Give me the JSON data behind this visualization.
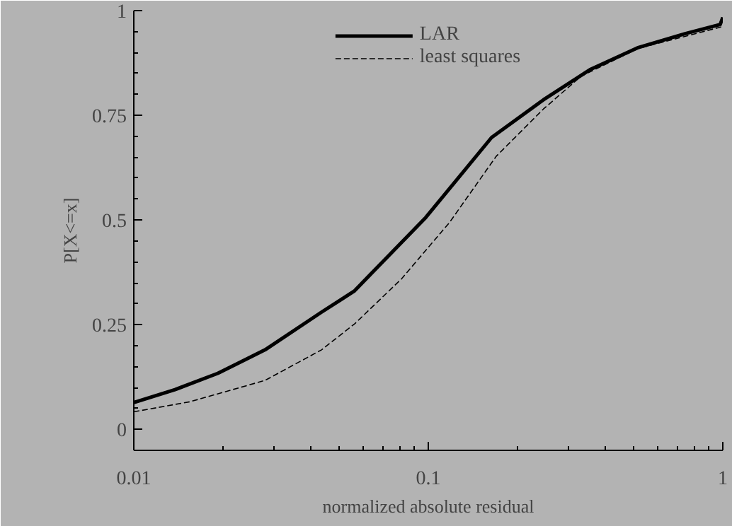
{
  "chart_data": {
    "type": "line",
    "xlabel": "normalized absolute residual",
    "ylabel": "P[X<=x]",
    "log": "x",
    "xlim": [
      0.01,
      1
    ],
    "ylim": [
      -0.05,
      1
    ],
    "xticks": [
      0.01,
      {
        "value": 0.02,
        "label": null
      },
      {
        "value": 0.03,
        "label": null
      },
      {
        "value": 0.04,
        "label": null
      },
      {
        "value": 0.05,
        "label": null
      },
      {
        "value": 0.06,
        "label": null
      },
      {
        "value": 0.07,
        "label": null
      },
      {
        "value": 0.08,
        "label": null
      },
      {
        "value": 0.09,
        "label": null
      },
      0.1,
      {
        "value": 0.2,
        "label": null
      },
      {
        "value": 0.3,
        "label": null
      },
      {
        "value": 0.4,
        "label": null
      },
      {
        "value": 0.5,
        "label": null
      },
      {
        "value": 0.6,
        "label": null
      },
      {
        "value": 0.7,
        "label": null
      },
      {
        "value": 0.8,
        "label": null
      },
      {
        "value": 0.9,
        "label": null
      },
      1
    ],
    "yticks": [
      0,
      {
        "value": 0.05,
        "label": null
      },
      {
        "value": 0.1,
        "label": null
      },
      {
        "value": 0.15,
        "label": null
      },
      {
        "value": 0.2,
        "label": null
      },
      0.25,
      {
        "value": 0.3,
        "label": null
      },
      {
        "value": 0.35,
        "label": null
      },
      {
        "value": 0.4,
        "label": null
      },
      {
        "value": 0.45,
        "label": null
      },
      0.5,
      {
        "value": 0.55,
        "label": null
      },
      {
        "value": 0.6,
        "label": null
      },
      {
        "value": 0.65,
        "label": null
      },
      {
        "value": 0.7,
        "label": null
      },
      0.75,
      {
        "value": 0.8,
        "label": null
      },
      {
        "value": 0.85,
        "label": null
      },
      {
        "value": 0.9,
        "label": null
      },
      {
        "value": 0.95,
        "label": null
      },
      1
    ],
    "grid": false,
    "legend": "top right",
    "marker": "none",
    "series": [
      {
        "name": "LAR",
        "color": "#000000",
        "line_style": "solid",
        "x": [
          0.01,
          0.0138,
          0.0193,
          0.0279,
          0.0434,
          0.0503,
          0.0562,
          0.098,
          0.164,
          0.246,
          0.356,
          0.513,
          0.745,
          0.98,
          1.0
        ],
        "values": [
          0.064,
          0.095,
          0.134,
          0.19,
          0.28,
          0.309,
          0.331,
          0.506,
          0.697,
          0.787,
          0.86,
          0.911,
          0.945,
          0.967,
          0.984
        ]
      },
      {
        "name": "least squares",
        "color": "#000000",
        "line_style": "dashed",
        "x": [
          0.01,
          0.0155,
          0.0279,
          0.0434,
          0.0562,
          0.081,
          0.118,
          0.17,
          0.246,
          0.33,
          0.513,
          1.0
        ],
        "values": [
          0.042,
          0.066,
          0.117,
          0.19,
          0.252,
          0.359,
          0.494,
          0.652,
          0.765,
          0.843,
          0.909,
          0.962
        ]
      }
    ]
  }
}
